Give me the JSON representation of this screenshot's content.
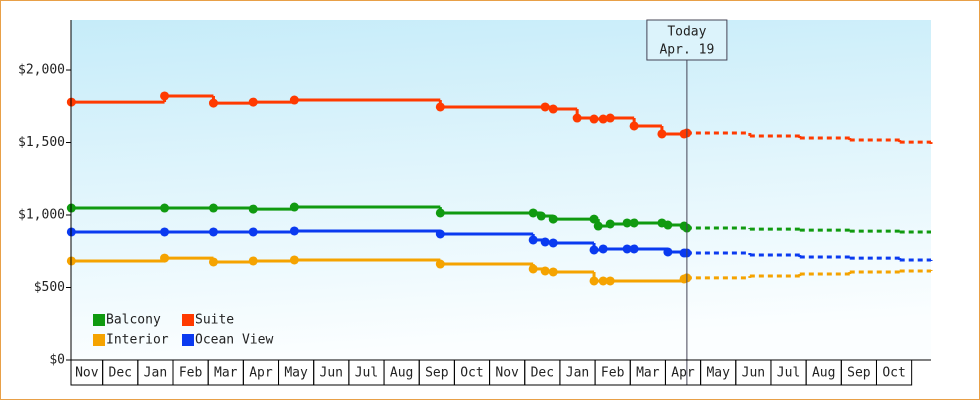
{
  "chart_data": {
    "type": "step-line",
    "ylim": [
      0,
      2345
    ],
    "yticks": [
      {
        "value": 0,
        "label": "$0"
      },
      {
        "value": 500,
        "label": "$500"
      },
      {
        "value": 1000,
        "label": "$1,000"
      },
      {
        "value": 1500,
        "label": "$1,500"
      },
      {
        "value": 2000,
        "label": "$2,000"
      }
    ],
    "xlim": [
      0.1,
      24.55
    ],
    "months": [
      "Nov",
      "Dec",
      "Jan",
      "Feb",
      "Mar",
      "Apr",
      "May",
      "Jun",
      "Jul",
      "Aug",
      "Sep",
      "Oct",
      "Nov",
      "Dec",
      "Jan",
      "Feb",
      "Mar",
      "Apr",
      "May",
      "Jun",
      "Jul",
      "Aug",
      "Sep",
      "Oct"
    ],
    "today": {
      "x": 17.61,
      "label": "Today",
      "date": "Apr. 19"
    },
    "projection_x": [
      17.61,
      19.4,
      20.82,
      22.24,
      23.66,
      24.55
    ],
    "series": [
      {
        "name": "Balcony",
        "color": "#109a10",
        "x": [
          0.11,
          2.76,
          4.15,
          5.28,
          6.45,
          10.6,
          13.24,
          13.47,
          13.81,
          14.97,
          15.09,
          15.43,
          15.91,
          16.11,
          16.9,
          17.07,
          17.53,
          17.61
        ],
        "values": [
          1048,
          1048,
          1048,
          1041,
          1055,
          1014,
          1014,
          993,
          972,
          972,
          924,
          938,
          945,
          945,
          945,
          931,
          924,
          910
        ],
        "projection": [
          910,
          903,
          896,
          889,
          883,
          883
        ]
      },
      {
        "name": "Suite",
        "color": "#ff3a00",
        "x": [
          0.11,
          2.76,
          4.15,
          5.28,
          6.45,
          10.6,
          13.58,
          13.81,
          14.49,
          14.97,
          15.23,
          15.43,
          16.11,
          16.9,
          17.53,
          17.61
        ],
        "values": [
          1779,
          1821,
          1772,
          1779,
          1793,
          1745,
          1745,
          1731,
          1669,
          1662,
          1662,
          1669,
          1614,
          1559,
          1559,
          1566
        ],
        "projection": [
          1566,
          1545,
          1531,
          1517,
          1503,
          1490
        ]
      },
      {
        "name": "Interior",
        "color": "#f5a300",
        "x": [
          0.11,
          2.76,
          4.15,
          5.28,
          6.45,
          10.6,
          13.24,
          13.58,
          13.81,
          14.97,
          15.23,
          15.43,
          17.53,
          17.61
        ],
        "values": [
          683,
          703,
          676,
          683,
          690,
          662,
          628,
          614,
          607,
          545,
          545,
          545,
          559,
          566
        ],
        "projection": [
          566,
          579,
          593,
          607,
          614,
          621
        ]
      },
      {
        "name": "Ocean View",
        "color": "#0a3af0",
        "x": [
          0.11,
          2.76,
          4.15,
          5.28,
          6.45,
          10.6,
          13.24,
          13.58,
          13.81,
          14.97,
          15.23,
          15.91,
          16.11,
          17.07,
          17.53,
          17.61
        ],
        "values": [
          883,
          883,
          883,
          883,
          890,
          869,
          828,
          814,
          807,
          759,
          766,
          766,
          766,
          745,
          738,
          738
        ],
        "projection": [
          738,
          724,
          710,
          703,
          690,
          683
        ]
      }
    ]
  }
}
